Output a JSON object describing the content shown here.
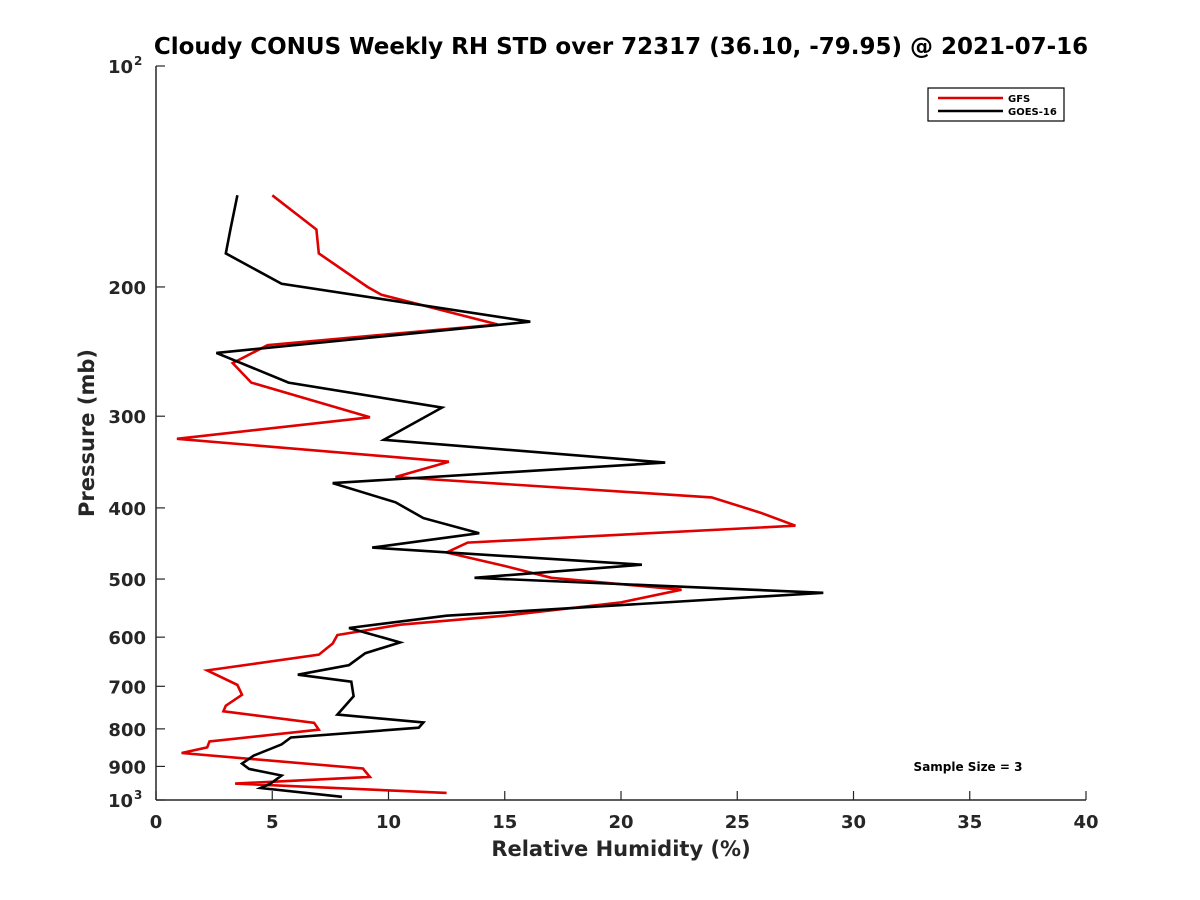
{
  "chart_data": {
    "type": "line",
    "title": "Cloudy CONUS Weekly RH STD over 72317 (36.10, -79.95) @ 2021-07-16",
    "xlabel": "Relative Humidity (%)",
    "ylabel": "Pressure (mb)",
    "xlim": [
      0,
      40
    ],
    "ylim": [
      100,
      1000
    ],
    "y_scale": "log",
    "y_reversed": true,
    "grid": false,
    "legend_position": "top-right",
    "x_ticks": [
      "0",
      "5",
      "10",
      "15",
      "20",
      "25",
      "30",
      "35",
      "40"
    ],
    "y_ticks": [
      {
        "value": 100,
        "base": "10",
        "exp": "2"
      },
      {
        "value": 200,
        "label": "200"
      },
      {
        "value": 300,
        "label": "300"
      },
      {
        "value": 400,
        "label": "400"
      },
      {
        "value": 500,
        "label": "500"
      },
      {
        "value": 600,
        "label": "600"
      },
      {
        "value": 700,
        "label": "700"
      },
      {
        "value": 800,
        "label": "800"
      },
      {
        "value": 900,
        "label": "900"
      },
      {
        "value": 1000,
        "base": "10",
        "exp": "3"
      }
    ],
    "annotation": "Sample Size = 3",
    "series": [
      {
        "name": "GFS",
        "color": "#e00000",
        "points": [
          [
            5.0,
            150
          ],
          [
            6.9,
            167
          ],
          [
            7.0,
            180
          ],
          [
            9.1,
            200
          ],
          [
            9.7,
            205
          ],
          [
            14.7,
            225
          ],
          [
            4.8,
            240
          ],
          [
            3.3,
            254
          ],
          [
            4.1,
            270
          ],
          [
            9.2,
            301
          ],
          [
            0.9,
            322
          ],
          [
            12.6,
            346
          ],
          [
            10.3,
            363
          ],
          [
            23.9,
            387
          ],
          [
            26.0,
            406
          ],
          [
            27.5,
            423
          ],
          [
            13.4,
            446
          ],
          [
            12.5,
            460
          ],
          [
            15.0,
            480
          ],
          [
            17.0,
            498
          ],
          [
            22.6,
            517
          ],
          [
            20.0,
            538
          ],
          [
            15.0,
            561
          ],
          [
            10.5,
            577
          ],
          [
            7.8,
            596
          ],
          [
            7.6,
            612
          ],
          [
            7.0,
            634
          ],
          [
            2.2,
            666
          ],
          [
            3.5,
            697
          ],
          [
            3.7,
            719
          ],
          [
            3.0,
            744
          ],
          [
            2.9,
            757
          ],
          [
            6.8,
            785
          ],
          [
            7.0,
            802
          ],
          [
            2.3,
            832
          ],
          [
            2.2,
            848
          ],
          [
            1.1,
            863
          ],
          [
            8.9,
            906
          ],
          [
            9.2,
            930
          ],
          [
            3.4,
            950
          ],
          [
            12.5,
            978
          ]
        ]
      },
      {
        "name": "GOES-16",
        "color": "#000000",
        "points": [
          [
            3.5,
            150
          ],
          [
            3.2,
            167
          ],
          [
            3.0,
            180
          ],
          [
            5.4,
            198
          ],
          [
            16.1,
            223
          ],
          [
            2.6,
            246
          ],
          [
            5.7,
            270
          ],
          [
            12.3,
            292
          ],
          [
            9.8,
            323
          ],
          [
            21.9,
            347
          ],
          [
            7.6,
            370
          ],
          [
            10.3,
            393
          ],
          [
            11.5,
            413
          ],
          [
            13.9,
            433
          ],
          [
            9.3,
            453
          ],
          [
            20.9,
            478
          ],
          [
            13.7,
            498
          ],
          [
            28.7,
            522
          ],
          [
            12.5,
            561
          ],
          [
            8.3,
            583
          ],
          [
            10.5,
            610
          ],
          [
            9.0,
            631
          ],
          [
            8.3,
            655
          ],
          [
            6.1,
            675
          ],
          [
            8.4,
            690
          ],
          [
            8.5,
            722
          ],
          [
            7.8,
            765
          ],
          [
            11.5,
            784
          ],
          [
            11.3,
            797
          ],
          [
            5.8,
            822
          ],
          [
            5.4,
            840
          ],
          [
            4.2,
            870
          ],
          [
            3.7,
            892
          ],
          [
            4.0,
            907
          ],
          [
            5.4,
            926
          ],
          [
            4.9,
            951
          ],
          [
            4.5,
            963
          ],
          [
            8.0,
            990
          ]
        ]
      }
    ]
  }
}
